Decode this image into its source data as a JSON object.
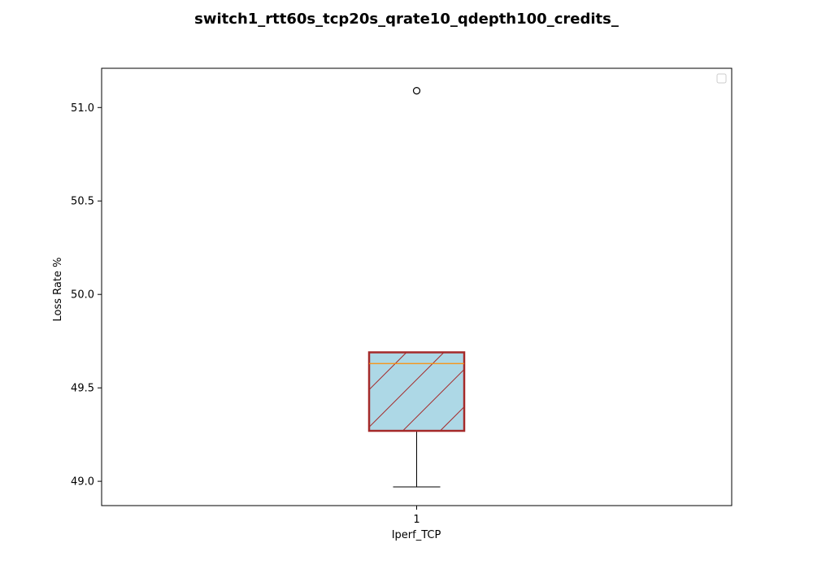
{
  "chart_data": {
    "type": "box",
    "title": "switch1_rtt60s_tcp20s_qrate10_qdepth100_credits_",
    "xlabel": "Iperf_TCP",
    "ylabel": "Loss Rate %",
    "ylim": [
      48.87,
      51.21
    ],
    "yticks": [
      "49.0",
      "49.5",
      "50.0",
      "50.5",
      "51.0"
    ],
    "yticks_values": [
      49.0,
      49.5,
      50.0,
      50.5,
      51.0
    ],
    "categories": [
      "1"
    ],
    "boxes": [
      {
        "category": "1",
        "whisker_low": 48.97,
        "q1": 49.27,
        "median": 49.63,
        "q3": 49.69,
        "whisker_high": 49.69,
        "outliers": [
          51.09
        ]
      }
    ],
    "legend": "top-right, empty",
    "grid": false,
    "colors": {
      "box_face": "#add8e6",
      "box_edge": "#a52a2a",
      "hatch": "#a52a2a",
      "median": "#ff8c00",
      "whisker": "#000000"
    }
  }
}
